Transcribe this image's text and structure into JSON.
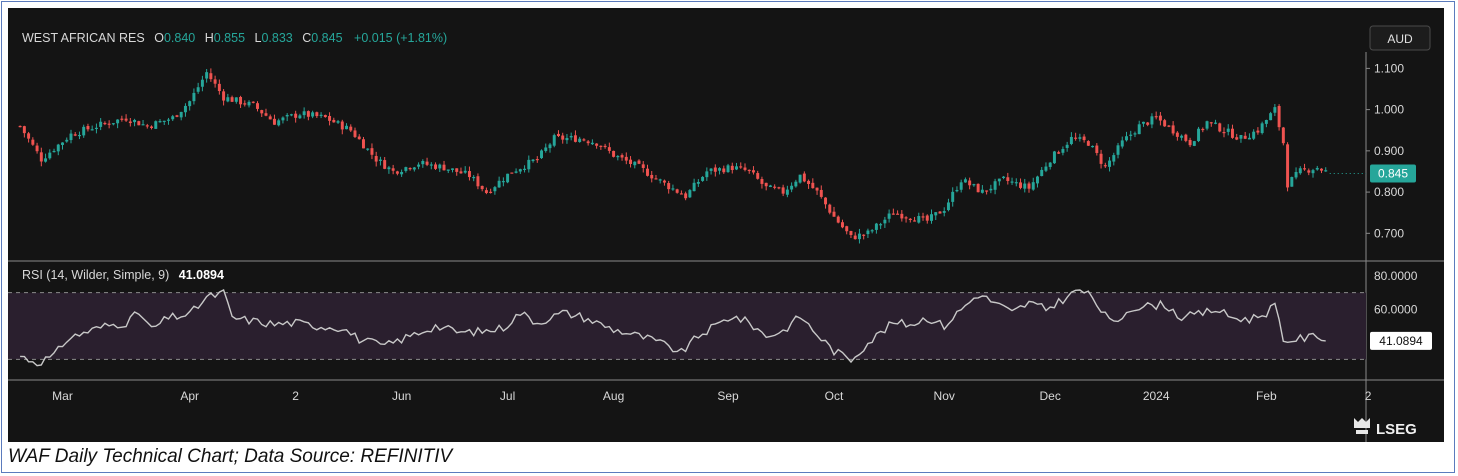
{
  "header": {
    "symbol": "WEST AFRICAN RES",
    "o_label": "O",
    "o_value": "0.840",
    "h_label": "H",
    "h_value": "0.855",
    "l_label": "L",
    "l_value": "0.833",
    "c_label": "C",
    "c_value": "0.845",
    "change": "+0.015 (+1.81%)",
    "currency": "AUD"
  },
  "rsi": {
    "label": "RSI (14, Wilder, Simple, 9)",
    "value": "41.0894"
  },
  "brand": "LSEG",
  "caption": "WAF Daily Technical Chart; Data Source: REFINITIV",
  "colors": {
    "background": "#141414",
    "up": "#26a69a",
    "down": "#ef5350",
    "rsi_line": "#c8c8c8",
    "rsi_band": "#2a1f2e",
    "text": "#d8d8d8",
    "last_price_bg": "#26a69a"
  },
  "chart_data": [
    {
      "type": "candlestick",
      "title": "WEST AFRICAN RES",
      "ylabel": "AUD",
      "ylim": [
        0.645,
        1.13
      ],
      "y_ticks": [
        "1.100",
        "1.000",
        "0.900",
        "0.800",
        "0.700"
      ],
      "last_price": "0.845",
      "x_ticks": [
        "Mar",
        "Apr",
        "2",
        "Jun",
        "Jul",
        "Aug",
        "Sep",
        "Oct",
        "Nov",
        "Dec",
        "2024",
        "Feb",
        "2"
      ],
      "x_tick_index": [
        10,
        40,
        65,
        90,
        115,
        140,
        167,
        192,
        218,
        243,
        268,
        294,
        318
      ],
      "n_bars": 318,
      "close_anchors": [
        [
          0,
          0.96
        ],
        [
          5,
          0.88
        ],
        [
          12,
          0.94
        ],
        [
          18,
          0.96
        ],
        [
          25,
          0.98
        ],
        [
          30,
          0.96
        ],
        [
          36,
          0.98
        ],
        [
          40,
          1.02
        ],
        [
          44,
          1.09
        ],
        [
          48,
          1.03
        ],
        [
          55,
          1.01
        ],
        [
          60,
          0.97
        ],
        [
          66,
          0.99
        ],
        [
          72,
          0.98
        ],
        [
          78,
          0.95
        ],
        [
          84,
          0.88
        ],
        [
          88,
          0.85
        ],
        [
          94,
          0.87
        ],
        [
          100,
          0.86
        ],
        [
          106,
          0.84
        ],
        [
          110,
          0.8
        ],
        [
          116,
          0.85
        ],
        [
          122,
          0.88
        ],
        [
          126,
          0.93
        ],
        [
          132,
          0.93
        ],
        [
          136,
          0.92
        ],
        [
          140,
          0.89
        ],
        [
          146,
          0.86
        ],
        [
          152,
          0.82
        ],
        [
          157,
          0.79
        ],
        [
          162,
          0.85
        ],
        [
          168,
          0.86
        ],
        [
          172,
          0.85
        ],
        [
          176,
          0.81
        ],
        [
          180,
          0.8
        ],
        [
          184,
          0.84
        ],
        [
          188,
          0.8
        ],
        [
          192,
          0.74
        ],
        [
          196,
          0.69
        ],
        [
          200,
          0.7
        ],
        [
          206,
          0.75
        ],
        [
          210,
          0.74
        ],
        [
          214,
          0.73
        ],
        [
          218,
          0.76
        ],
        [
          222,
          0.83
        ],
        [
          227,
          0.8
        ],
        [
          232,
          0.83
        ],
        [
          238,
          0.81
        ],
        [
          243,
          0.88
        ],
        [
          248,
          0.93
        ],
        [
          252,
          0.92
        ],
        [
          256,
          0.86
        ],
        [
          260,
          0.92
        ],
        [
          264,
          0.96
        ],
        [
          268,
          0.98
        ],
        [
          272,
          0.95
        ],
        [
          276,
          0.92
        ],
        [
          280,
          0.97
        ],
        [
          284,
          0.95
        ],
        [
          288,
          0.93
        ],
        [
          292,
          0.95
        ],
        [
          296,
          1.0
        ],
        [
          298,
          0.92
        ],
        [
          299,
          0.82
        ],
        [
          302,
          0.85
        ],
        [
          306,
          0.86
        ],
        [
          308,
          0.85
        ]
      ]
    },
    {
      "type": "line",
      "title": "RSI (14, Wilder, Simple, 9)",
      "ylim": [
        14,
        86
      ],
      "y_ticks": [
        "80.0000",
        "60.0000"
      ],
      "band": [
        30,
        70
      ],
      "last_value": "41.0894",
      "rsi_anchors": [
        [
          0,
          32
        ],
        [
          4,
          28
        ],
        [
          8,
          32
        ],
        [
          11,
          42
        ],
        [
          15,
          46
        ],
        [
          20,
          50
        ],
        [
          25,
          52
        ],
        [
          28,
          58
        ],
        [
          31,
          48
        ],
        [
          35,
          55
        ],
        [
          40,
          57
        ],
        [
          44,
          67
        ],
        [
          48,
          70
        ],
        [
          50,
          55
        ],
        [
          55,
          53
        ],
        [
          60,
          51
        ],
        [
          65,
          52
        ],
        [
          70,
          50
        ],
        [
          76,
          49
        ],
        [
          80,
          42
        ],
        [
          86,
          38
        ],
        [
          92,
          44
        ],
        [
          98,
          50
        ],
        [
          104,
          46
        ],
        [
          110,
          47
        ],
        [
          114,
          49
        ],
        [
          118,
          58
        ],
        [
          122,
          52
        ],
        [
          128,
          58
        ],
        [
          132,
          56
        ],
        [
          136,
          52
        ],
        [
          140,
          48
        ],
        [
          146,
          44
        ],
        [
          150,
          41
        ],
        [
          156,
          34
        ],
        [
          160,
          44
        ],
        [
          164,
          50
        ],
        [
          168,
          56
        ],
        [
          172,
          52
        ],
        [
          176,
          44
        ],
        [
          180,
          47
        ],
        [
          184,
          56
        ],
        [
          188,
          45
        ],
        [
          192,
          35
        ],
        [
          196,
          30
        ],
        [
          200,
          40
        ],
        [
          206,
          52
        ],
        [
          210,
          51
        ],
        [
          214,
          55
        ],
        [
          218,
          50
        ],
        [
          222,
          60
        ],
        [
          226,
          69
        ],
        [
          230,
          64
        ],
        [
          234,
          58
        ],
        [
          238,
          64
        ],
        [
          242,
          60
        ],
        [
          246,
          66
        ],
        [
          250,
          72
        ],
        [
          253,
          67
        ],
        [
          256,
          56
        ],
        [
          258,
          51
        ],
        [
          262,
          61
        ],
        [
          266,
          62
        ],
        [
          270,
          63
        ],
        [
          274,
          55
        ],
        [
          278,
          57
        ],
        [
          282,
          60
        ],
        [
          286,
          55
        ],
        [
          290,
          54
        ],
        [
          294,
          58
        ],
        [
          296,
          63
        ],
        [
          298,
          40
        ],
        [
          300,
          42
        ],
        [
          304,
          43
        ],
        [
          306,
          45
        ],
        [
          308,
          41.09
        ]
      ]
    }
  ]
}
